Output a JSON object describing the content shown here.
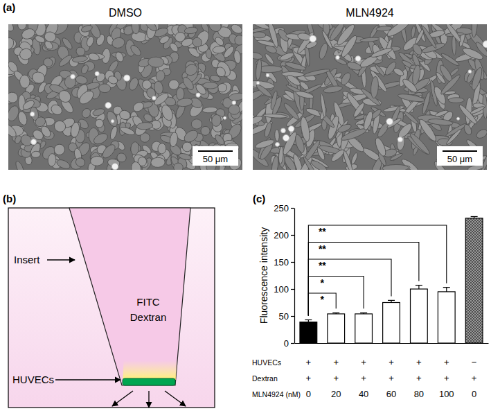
{
  "panel_a": {
    "label": "(a)",
    "images": [
      {
        "title": "DMSO",
        "scale_bar": "50 μm"
      },
      {
        "title": "MLN4924",
        "scale_bar": "50 μm"
      }
    ]
  },
  "panel_b": {
    "label": "(b)",
    "insert": "Insert",
    "cells": "HUVECs",
    "tracer": [
      "FITC",
      "Dextran"
    ]
  },
  "chart_data": {
    "type": "bar",
    "title": "(c)",
    "y_label": "Fluorescence intensity",
    "categories": [
      null,
      null,
      null,
      null,
      null,
      null,
      null
    ],
    "values": [
      39,
      54,
      54,
      75,
      100,
      95,
      231
    ],
    "errors": [
      4,
      2,
      2,
      4,
      7,
      8,
      3
    ],
    "colors": [
      "#000000",
      "#ffffff",
      "#ffffff",
      "#ffffff",
      "#ffffff",
      "#ffffff",
      "#9a9a9a"
    ],
    "ylim": [
      0,
      250
    ],
    "yticks": [
      0,
      50,
      100,
      150,
      200,
      250
    ],
    "grid": false,
    "table": {
      "rows": [
        {
          "label": "HUVECs",
          "cells": [
            "+",
            "+",
            "+",
            "+",
            "+",
            "+",
            "−"
          ]
        },
        {
          "label": "Dextran",
          "cells": [
            "+",
            "+",
            "+",
            "+",
            "+",
            "+",
            "+"
          ]
        },
        {
          "label": "MLN4924 (nM)",
          "cells": [
            0,
            20,
            40,
            60,
            80,
            100,
            0
          ]
        }
      ]
    },
    "annotations": [
      {
        "from": 0,
        "to": 1,
        "label": "*"
      },
      {
        "from": 0,
        "to": 2,
        "label": "*"
      },
      {
        "from": 0,
        "to": 3,
        "label": "**"
      },
      {
        "from": 0,
        "to": 4,
        "label": "**"
      },
      {
        "from": 0,
        "to": 5,
        "label": "**"
      }
    ]
  }
}
